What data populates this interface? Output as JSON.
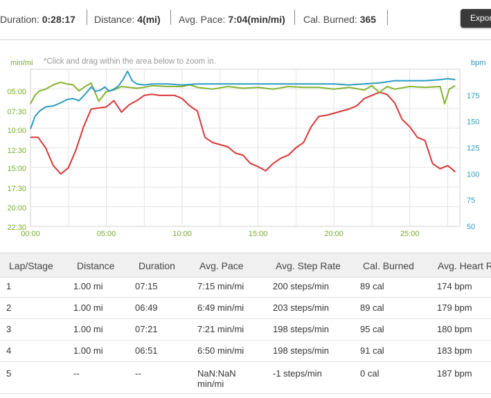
{
  "summary": {
    "duration_label": "Duration:",
    "duration_value": "0:28:17",
    "distance_label": "Distance:",
    "distance_value": "4(mi)",
    "pace_label": "Avg. Pace:",
    "pace_value": "7:04(min/mi)",
    "cal_label": "Cal. Burned:",
    "cal_value": "365",
    "export_label": "Export"
  },
  "chart_data": {
    "type": "line",
    "hint": "*Click and drag within the area below to zoom in.",
    "left_unit": "min/mi",
    "right_unit": "bpm",
    "left_ticks": [
      "05:00",
      "07:30",
      "10:00",
      "12:30",
      "15:00",
      "17:30",
      "20:00",
      "22:30"
    ],
    "right_ticks": [
      "175",
      "150",
      "125",
      "100",
      "75",
      "50"
    ],
    "x_ticks": [
      "00:00",
      "05:00",
      "10:00",
      "15:00",
      "20:00",
      "25:00"
    ],
    "xlim": [
      0,
      28.3
    ],
    "ylim_bpm": [
      50,
      200
    ],
    "ylim_pace_min": [
      2.5,
      22.5
    ],
    "grid": true,
    "colors": {
      "heart_rate": "#2a9bc0",
      "pace": "#84b330",
      "elevation": "#d93535",
      "left_axis": "#7aa82a",
      "right_axis": "#2a9bc0"
    },
    "series": [
      {
        "key": "heart_rate",
        "x": [
          0,
          0.3,
          0.6,
          1,
          1.5,
          2,
          2.4,
          2.8,
          3.2,
          3.6,
          4,
          4.3,
          4.6,
          4.9,
          5.2,
          5.5,
          5.8,
          6.1,
          6.4,
          6.7,
          7,
          7.5,
          8,
          9,
          10,
          11,
          12,
          13,
          14,
          15,
          16,
          17,
          18,
          19,
          20,
          21,
          22,
          23,
          24,
          25,
          26,
          27,
          27.5,
          28
        ],
        "y": [
          143,
          155,
          160,
          164,
          165,
          168,
          171,
          172,
          170,
          176,
          183,
          179,
          180,
          183,
          179,
          181,
          184,
          190,
          198,
          189,
          186,
          185,
          186,
          186,
          185,
          186,
          186,
          186,
          186,
          186,
          186,
          186,
          186,
          186,
          186,
          185,
          186,
          187,
          189,
          189,
          189,
          190,
          191,
          190
        ]
      },
      {
        "key": "pace",
        "x": [
          0,
          0.3,
          0.6,
          1,
          1.5,
          2,
          2.4,
          2.8,
          3.2,
          3.6,
          4,
          4.5,
          5,
          5.5,
          6,
          6.5,
          7,
          7.5,
          8,
          9,
          10,
          10.5,
          11,
          12,
          13,
          14,
          15,
          16,
          17,
          18,
          19,
          20,
          21,
          22,
          22.5,
          23,
          23.5,
          24,
          25,
          26,
          27,
          27.3,
          27.6,
          28
        ],
        "y": [
          8.5,
          7.5,
          7,
          6.8,
          6.3,
          6,
          6.2,
          6.3,
          7,
          6.5,
          6.1,
          8.2,
          7.1,
          6.9,
          6.5,
          6.6,
          6.7,
          6.6,
          6.4,
          6.5,
          6.5,
          6.3,
          6.6,
          6.8,
          6.5,
          6.7,
          6.6,
          6.8,
          6.5,
          6.6,
          6.6,
          6.8,
          6.6,
          6.9,
          6.4,
          7.2,
          6.5,
          6.8,
          6.5,
          6.6,
          6.5,
          8.5,
          6.8,
          6.4
        ]
      },
      {
        "key": "elevation",
        "x": [
          0,
          0.5,
          1,
          1.5,
          2,
          2.5,
          3,
          3.5,
          4,
          4.5,
          5,
          5.5,
          6,
          6.5,
          7,
          7.5,
          8,
          8.5,
          9,
          9.5,
          10,
          10.5,
          11,
          11.5,
          12,
          12.5,
          13,
          13.5,
          14,
          14.5,
          15,
          15.5,
          16,
          16.5,
          17,
          17.5,
          18,
          18.5,
          19,
          19.5,
          20,
          20.5,
          21,
          21.5,
          22,
          22.5,
          23,
          23.5,
          24,
          24.5,
          25,
          25.5,
          26,
          26.5,
          27,
          27.5,
          28
        ],
        "y": [
          135,
          135,
          125,
          108,
          100,
          106,
          123,
          145,
          162,
          163,
          164,
          170,
          159,
          166,
          170,
          175,
          176,
          175,
          175,
          175,
          172,
          165,
          160,
          135,
          130,
          128,
          126,
          120,
          118,
          110,
          107,
          103,
          110,
          115,
          118,
          125,
          130,
          145,
          155,
          156,
          158,
          160,
          162,
          165,
          172,
          175,
          178,
          176,
          168,
          152,
          145,
          135,
          132,
          110,
          105,
          108,
          102
        ]
      }
    ]
  },
  "table": {
    "headers": [
      "Lap/Stage",
      "Distance",
      "Duration",
      "Avg. Pace",
      "Avg. Step Rate",
      "Cal. Burned",
      "Avg. Heart Rate"
    ],
    "rows": [
      [
        "1",
        "1.00 mi",
        "07:15",
        "7:15 min/mi",
        "200 steps/min",
        "89 cal",
        "174 bpm"
      ],
      [
        "2",
        "1.00 mi",
        "06:49",
        "6:49 min/mi",
        "203 steps/min",
        "89 cal",
        "179 bpm"
      ],
      [
        "3",
        "1.00 mi",
        "07:21",
        "7:21 min/mi",
        "198 steps/min",
        "95 cal",
        "180 bpm"
      ],
      [
        "4",
        "1.00 mi",
        "06:51",
        "6:50 min/mi",
        "198 steps/min",
        "91 cal",
        "183 bpm"
      ],
      [
        "5",
        "--",
        "--",
        "NaN:NaN min/mi",
        "-1 steps/min",
        "0 cal",
        "187 bpm"
      ]
    ]
  }
}
